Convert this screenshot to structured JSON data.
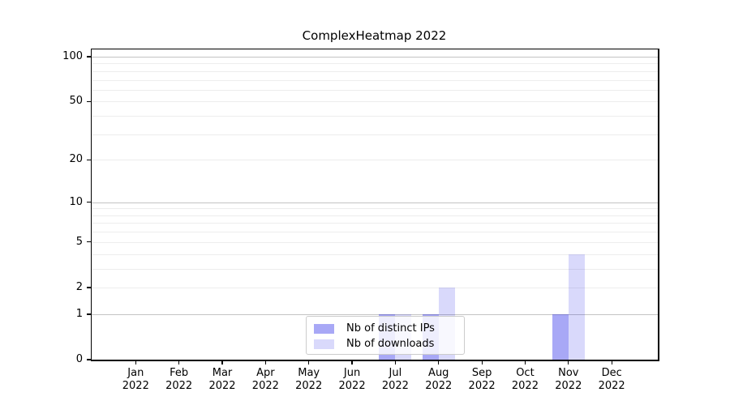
{
  "chart_data": {
    "type": "bar",
    "title": "ComplexHeatmap 2022",
    "categories": [
      "Jan",
      "Feb",
      "Mar",
      "Apr",
      "May",
      "Jun",
      "Jul",
      "Aug",
      "Sep",
      "Oct",
      "Nov",
      "Dec"
    ],
    "category_year": "2022",
    "series": [
      {
        "name": "Nb of distinct IPs",
        "color": "rgba(0,0,230,0.34)",
        "values": [
          0,
          0,
          0,
          0,
          0,
          0,
          1,
          1,
          0,
          0,
          1,
          0
        ]
      },
      {
        "name": "Nb of downloads",
        "color": "rgba(0,0,230,0.15)",
        "values": [
          0,
          0,
          0,
          0,
          0,
          0,
          1,
          2,
          0,
          0,
          4,
          0
        ]
      }
    ],
    "yaxis": {
      "scale": "log1p",
      "tick_labels": [
        "0",
        "1",
        "2",
        "5",
        "10",
        "20",
        "50",
        "100"
      ],
      "tick_values": [
        0,
        1,
        2,
        5,
        10,
        20,
        50,
        100
      ],
      "major_gridlines": [
        1,
        10,
        100
      ],
      "minor_gridlines": [
        2,
        3,
        4,
        5,
        6,
        7,
        8,
        9,
        20,
        30,
        40,
        50,
        60,
        70,
        80,
        90
      ],
      "ylim": [
        0,
        112
      ]
    },
    "legend": {
      "position": "lower center"
    },
    "colors": {
      "major_grid": "#c3c3c3",
      "minor_grid": "#ededed",
      "spine": "#000000",
      "text": "#000000",
      "legend_border": "#cccccc"
    },
    "grid": true
  }
}
